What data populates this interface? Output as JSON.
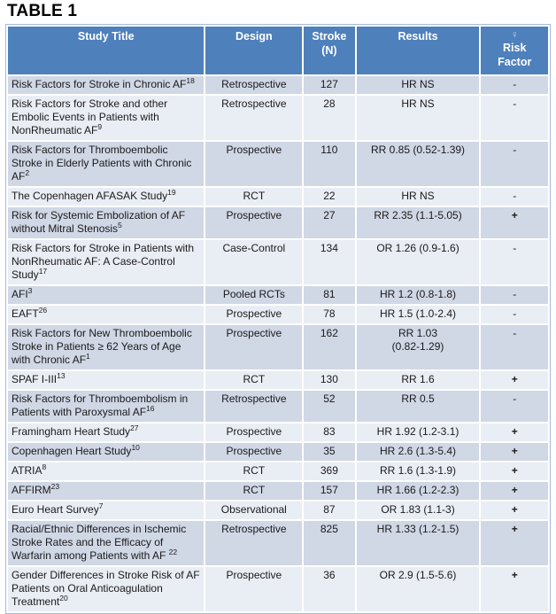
{
  "title": "TABLE 1",
  "colors": {
    "header_bg": "#4e80bb",
    "header_text": "#ffffff",
    "band_dark": "#d0d7e5",
    "band_light": "#e9edf4",
    "outer_border": "#a3bbdc",
    "body_text": "#1a1a1a",
    "female_symbol": "#bcd2ea"
  },
  "table": {
    "columns": [
      {
        "label": "Study Title"
      },
      {
        "label": "Design"
      },
      {
        "label": "Stroke\n(N)"
      },
      {
        "label": "Results"
      },
      {
        "symbol": "♀",
        "label": "Risk\nFactor"
      }
    ],
    "rows": [
      {
        "study": "Risk Factors for Stroke in Chronic AF",
        "ref": "18",
        "design": "Retrospective",
        "n": "127",
        "results": "HR NS",
        "risk": "-"
      },
      {
        "study": "Risk Factors for Stroke and other Embolic Events in Patients with NonRheumatic AF",
        "ref": "9",
        "design": "Retrospective",
        "n": "28",
        "results": "HR NS",
        "risk": "-"
      },
      {
        "study": "Risk Factors for Thromboembolic Stroke in Elderly Patients with Chronic AF",
        "ref": "2",
        "design": "Prospective",
        "n": "110",
        "results": "RR 0.85 (0.52-1.39)",
        "risk": "-"
      },
      {
        "study": "The Copenhagen AFASAK Study",
        "ref": "19",
        "design": "RCT",
        "n": "22",
        "results": "HR NS",
        "risk": "-"
      },
      {
        "study": "Risk for Systemic Embolization of AF without Mitral Stenosis",
        "ref": "5",
        "design": "Prospective",
        "n": "27",
        "results": "RR 2.35 (1.1-5.05)",
        "risk": "+"
      },
      {
        "study": "Risk Factors for Stroke in Patients with NonRheumatic AF: A Case-Control Study",
        "ref": "17",
        "design": "Case-Control",
        "n": "134",
        "results": "OR 1.26 (0.9-1.6)",
        "risk": "-"
      },
      {
        "study": "AFI",
        "ref": "3",
        "design": "Pooled RCTs",
        "n": "81",
        "results": "HR 1.2 (0.8-1.8)",
        "risk": "-"
      },
      {
        "study": "EAFT",
        "ref": "26",
        "design": "Prospective",
        "n": "78",
        "results": "HR 1.5 (1.0-2.4)",
        "risk": "-"
      },
      {
        "study": "Risk Factors for New Thromboembolic Stroke in Patients ≥ 62 Years of Age with Chronic AF",
        "ref": "1",
        "design": "Prospective",
        "n": "162",
        "results": "RR 1.03\n(0.82-1.29)",
        "risk": "-"
      },
      {
        "study": "SPAF I-III",
        "ref": "13",
        "design": "RCT",
        "n": "130",
        "results": "RR 1.6",
        "risk": "+"
      },
      {
        "study": "Risk Factors for Thromboembolism in Patients with Paroxysmal AF",
        "ref": "16",
        "design": "Retrospective",
        "n": "52",
        "results": "RR  0.5",
        "risk": "-"
      },
      {
        "study": "Framingham Heart Study",
        "ref": "27",
        "design": "Prospective",
        "n": "83",
        "results": "HR 1.92 (1.2-3.1)",
        "risk": "+"
      },
      {
        "study": "Copenhagen Heart Study",
        "ref": "10",
        "design": "Prospective",
        "n": "35",
        "results": "HR 2.6 (1.3-5.4)",
        "risk": "+"
      },
      {
        "study": "ATRIA",
        "ref": "8",
        "design": "RCT",
        "n": "369",
        "results": "RR 1.6 (1.3-1.9)",
        "risk": "+"
      },
      {
        "study": "AFFIRM",
        "ref": "23",
        "design": "RCT",
        "n": "157",
        "results": "HR 1.66 (1.2-2.3)",
        "risk": "+"
      },
      {
        "study": "Euro Heart Survey",
        "ref": "7",
        "design": "Observational",
        "n": "87",
        "results": "OR 1.83 (1.1-3)",
        "risk": "+"
      },
      {
        "study": "Racial/Ethnic Differences in Ischemic Stroke Rates and the Efficacy of Warfarin among Patients with AF ",
        "ref": "22",
        "design": "Retrospective",
        "n": "825",
        "results": "HR 1.33 (1.2-1.5)",
        "risk": "+"
      },
      {
        "study": "Gender Differences in Stroke Risk of AF Patients on Oral Anticoagulation Treatment",
        "ref": "20",
        "design": "Prospective",
        "n": "36",
        "results": "OR 2.9 (1.5-5.6)",
        "risk": "+"
      }
    ]
  }
}
